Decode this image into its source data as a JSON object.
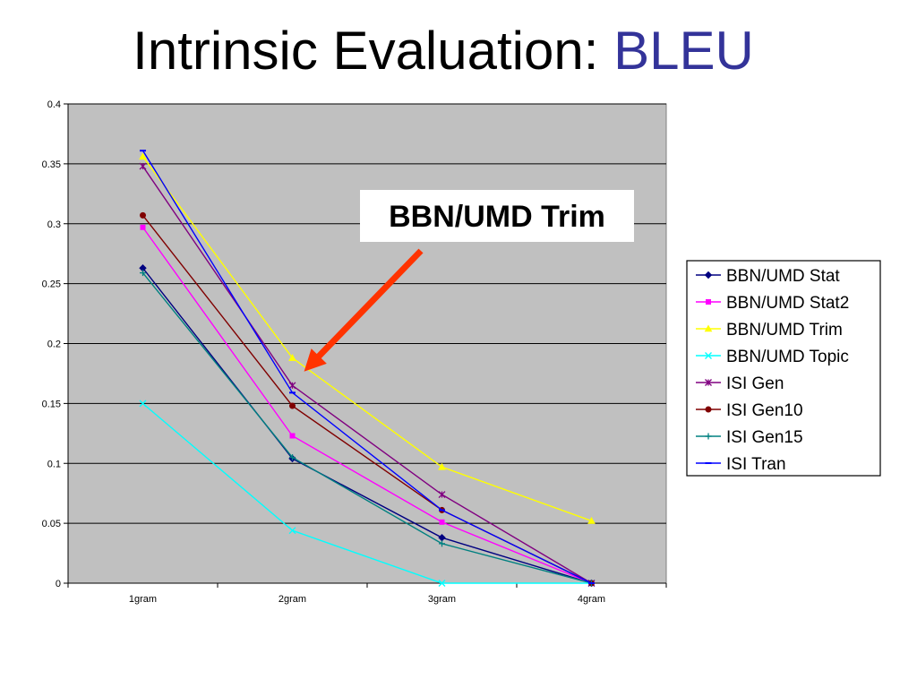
{
  "slide": {
    "title_prefix": "Intrinsic Evaluation: ",
    "title_accent": "BLEU",
    "accent_color": "#333399"
  },
  "chart_data": {
    "type": "line",
    "categories": [
      "1gram",
      "2gram",
      "3gram",
      "4gram"
    ],
    "ylim": [
      0,
      0.4
    ],
    "y_ticks": [
      "0",
      "0.05",
      "0.1",
      "0.15",
      "0.2",
      "0.25",
      "0.3",
      "0.35",
      "0.4"
    ],
    "grid": true,
    "plot_background": "#c0c0c0",
    "legend_position": "right",
    "series": [
      {
        "name": "BBN/UMD Stat",
        "color": "#000080",
        "marker": "diamond",
        "values": [
          0.263,
          0.104,
          0.038,
          0.0
        ]
      },
      {
        "name": "BBN/UMD Stat2",
        "color": "#ff00ff",
        "marker": "square",
        "values": [
          0.297,
          0.123,
          0.051,
          0.0
        ]
      },
      {
        "name": "BBN/UMD Trim",
        "color": "#ffff00",
        "marker": "triangle",
        "values": [
          0.356,
          0.188,
          0.097,
          0.052
        ]
      },
      {
        "name": "BBN/UMD Topic",
        "color": "#00ffff",
        "marker": "x",
        "values": [
          0.15,
          0.044,
          0.0,
          0.0
        ]
      },
      {
        "name": "ISI Gen",
        "color": "#800080",
        "marker": "star",
        "values": [
          0.348,
          0.165,
          0.074,
          0.0
        ]
      },
      {
        "name": "ISI Gen10",
        "color": "#800000",
        "marker": "circle",
        "values": [
          0.307,
          0.148,
          0.061,
          0.0
        ]
      },
      {
        "name": "ISI Gen15",
        "color": "#008080",
        "marker": "plus",
        "values": [
          0.259,
          0.105,
          0.033,
          0.0
        ]
      },
      {
        "name": "ISI Tran",
        "color": "#0000ff",
        "marker": "dash",
        "values": [
          0.361,
          0.159,
          0.061,
          0.0
        ]
      }
    ],
    "annotation": {
      "text": "BBN/UMD Trim",
      "arrow_color": "#ff3300",
      "points_to": {
        "category": "2gram",
        "value": 0.188
      }
    }
  }
}
